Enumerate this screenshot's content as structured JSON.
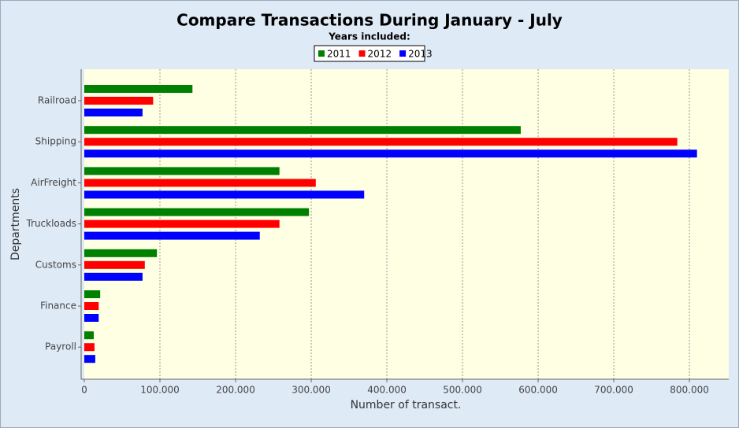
{
  "chart_data": {
    "type": "hbar",
    "title": "Compare Transactions During January - July",
    "subtitle": "Years included:",
    "xlabel": "Number of transact.",
    "ylabel": "Departments",
    "categories": [
      "Railroad",
      "Shipping",
      "AirFreight",
      "Truckloads",
      "Customs",
      "Finance",
      "Payroll"
    ],
    "series": [
      {
        "name": "2011",
        "color": "#008000",
        "values": [
          143000,
          577000,
          258000,
          297000,
          96000,
          21000,
          12500
        ]
      },
      {
        "name": "2012",
        "color": "#ff0000",
        "values": [
          91000,
          784000,
          306000,
          258000,
          80000,
          19000,
          13500
        ]
      },
      {
        "name": "2013",
        "color": "#0000ff",
        "values": [
          77000,
          810000,
          370000,
          232000,
          77000,
          19000,
          14500
        ]
      }
    ],
    "xlim": [
      0,
      852000
    ],
    "xticks": [
      0,
      {
        "value": 100000,
        "label": "100.000"
      },
      {
        "value": 200000,
        "label": "200.000"
      },
      {
        "value": 300000,
        "label": "300.000"
      },
      {
        "value": 400000,
        "label": "400.000"
      },
      {
        "value": 500000,
        "label": "500.000"
      },
      {
        "value": 600000,
        "label": "600.000"
      },
      {
        "value": 700000,
        "label": "700.000"
      },
      {
        "value": 800000,
        "label": "800.000"
      }
    ],
    "grid": true,
    "legend": "top"
  }
}
